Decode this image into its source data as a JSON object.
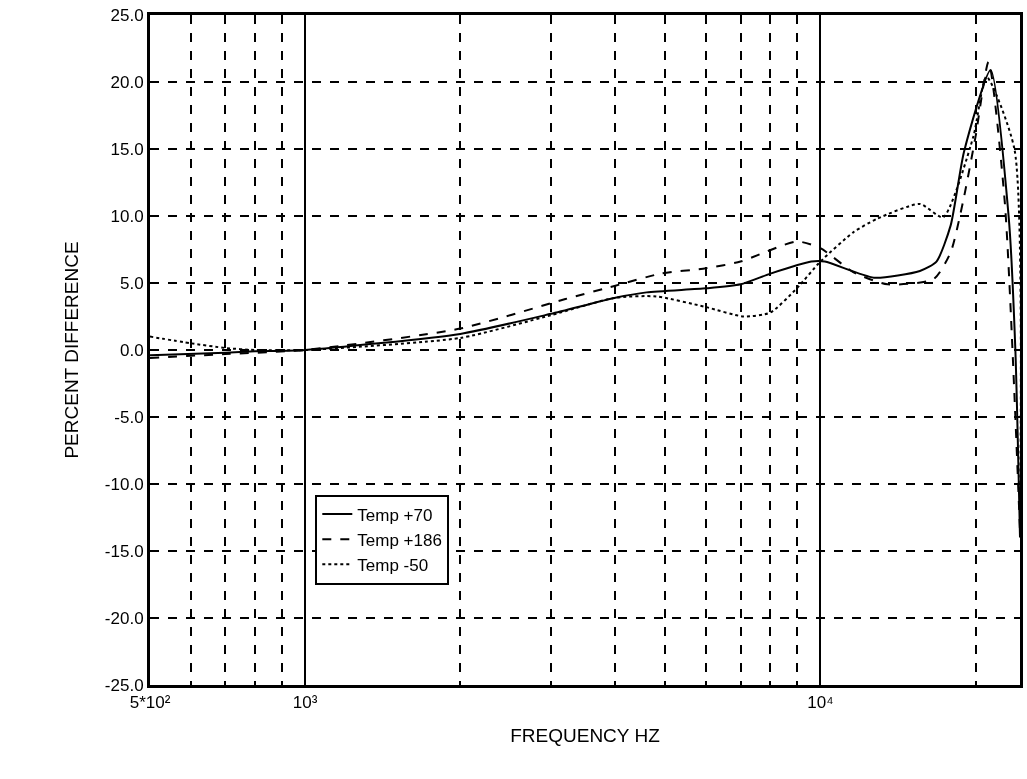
{
  "chart_data": {
    "type": "line",
    "xlabel": "FREQUENCY HZ",
    "ylabel": "PERCENT DIFFERENCE",
    "log": "x",
    "xlim": [
      500,
      24400
    ],
    "xticks": [
      {
        "value": 500,
        "label": "5*10²"
      },
      {
        "value": 600,
        "label": null
      },
      {
        "value": 700,
        "label": null
      },
      {
        "value": 800,
        "label": null
      },
      {
        "value": 900,
        "label": null
      },
      {
        "value": 1000,
        "label": "10³"
      },
      {
        "value": 2000,
        "label": null
      },
      {
        "value": 3000,
        "label": null
      },
      {
        "value": 4000,
        "label": null
      },
      {
        "value": 5000,
        "label": null
      },
      {
        "value": 6000,
        "label": null
      },
      {
        "value": 7000,
        "label": null
      },
      {
        "value": 8000,
        "label": null
      },
      {
        "value": 9000,
        "label": null
      },
      {
        "value": 10000,
        "label": "10⁴"
      },
      {
        "value": 20000,
        "label": null
      }
    ],
    "ylim": [
      -25,
      25
    ],
    "yticks": [
      {
        "value": -25,
        "label": "-25.0"
      },
      {
        "value": -20,
        "label": "-20.0"
      },
      {
        "value": -15,
        "label": "-15.0"
      },
      {
        "value": -10,
        "label": "-10.0"
      },
      {
        "value": -5,
        "label": "-5.0"
      },
      {
        "value": 0,
        "label": "0.0"
      },
      {
        "value": 5,
        "label": "5.0"
      },
      {
        "value": 10,
        "label": "10.0"
      },
      {
        "value": 15,
        "label": "15.0"
      },
      {
        "value": 20,
        "label": "20.0"
      },
      {
        "value": 25,
        "label": "25.0"
      }
    ],
    "grid": true,
    "legend": "bottom left",
    "marker": "none",
    "series": [
      {
        "name": "Temp +70",
        "color": "#000000",
        "line_style": "solid",
        "x": [
          500,
          700,
          800,
          1000,
          2000,
          3000,
          4000,
          4600,
          6000,
          7000,
          8000,
          9600,
          10200,
          12700,
          15600,
          16800,
          17900,
          19000,
          21400,
          23200,
          23900,
          24400
        ],
        "values": [
          -0.4,
          -0.2,
          -0.1,
          0,
          1.2,
          2.7,
          3.9,
          4.3,
          4.6,
          4.9,
          5.7,
          6.6,
          6.6,
          5.4,
          5.9,
          6.6,
          9.3,
          14.8,
          20.9,
          9.9,
          0,
          -14
        ]
      },
      {
        "name": "Temp +186",
        "color": "#000000",
        "line_style": "dashed",
        "x": [
          500,
          700,
          1000,
          2000,
          3200,
          4000,
          4900,
          6000,
          7000,
          9000,
          10000,
          11600,
          13500,
          16600,
          17900,
          18900,
          20000,
          21200,
          22800,
          24400
        ],
        "values": [
          -0.6,
          -0.3,
          0,
          1.6,
          3.8,
          4.8,
          5.7,
          6.1,
          6.6,
          8.1,
          7.6,
          5.8,
          4.9,
          5.3,
          7.3,
          11,
          15.9,
          21.5,
          11,
          -13.5
        ]
      },
      {
        "name": "Temp -50",
        "color": "#000000",
        "line_style": "dotted",
        "x": [
          500,
          600,
          700,
          800,
          1000,
          2000,
          3000,
          4000,
          4800,
          6000,
          7100,
          8000,
          9000,
          10000,
          11600,
          12900,
          15600,
          17300,
          19800,
          21000,
          23800,
          24400
        ],
        "values": [
          1.0,
          0.5,
          0.15,
          0,
          0,
          0.9,
          2.6,
          3.9,
          4.0,
          3.2,
          2.5,
          2.8,
          4.6,
          6.6,
          8.8,
          9.8,
          10.9,
          9.9,
          15.9,
          20.4,
          15,
          -13
        ]
      }
    ]
  }
}
